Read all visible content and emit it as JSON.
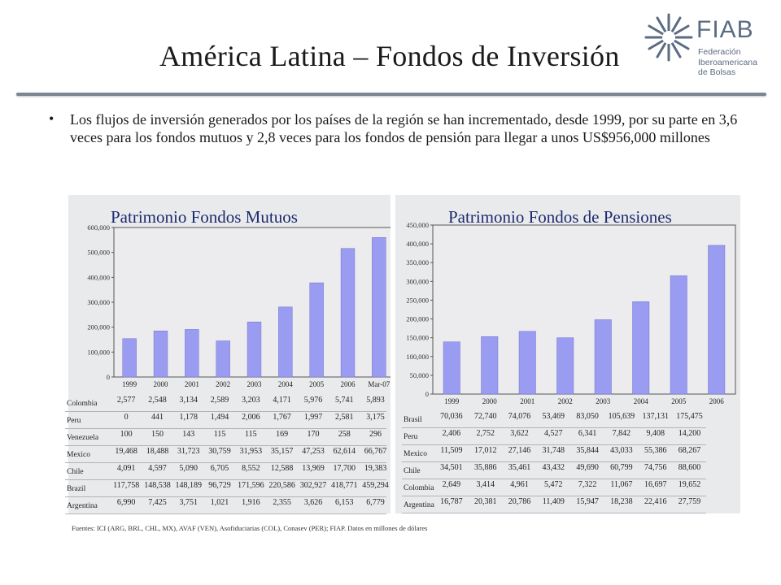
{
  "slide": {
    "title": "América Latina – Fondos de Inversión",
    "bullet": "Los flujos de inversión generados por los países de la región se han incrementado, desde 1999, por su parte en 3,6 veces para los fondos mutuos y 2,8 veces para los fondos de pensión para llegar a unos US$956,000 millones",
    "footnote": "Fuentes: ICI (ARG, BRL, CHL, MX), AVAF (VEN), Asofiduciarias (COL), Conasev (PER); FIAP. Datos en millones de dólares"
  },
  "logo": {
    "name": "FIAB",
    "subtitle_lines": [
      "Federación",
      "Iberoamericana",
      "de Bolsas"
    ],
    "color": "#5a6b82"
  },
  "colors": {
    "bar": "#9a9cf2",
    "bar_edge": "#6f72c8",
    "plot_bg": "#ececee",
    "title": "#1d2a6e"
  },
  "chart_data": [
    {
      "type": "bar",
      "title": "Patrimonio Fondos Mutuos",
      "categories": [
        "1999",
        "2000",
        "2001",
        "2002",
        "2003",
        "2004",
        "2005",
        "2006",
        "Mar-07"
      ],
      "values": [
        154000,
        185000,
        191000,
        145000,
        221000,
        281000,
        378000,
        516000,
        560000
      ],
      "ylim": [
        0,
        600000
      ],
      "yticks": [
        "0",
        "100,000",
        "200,000",
        "300,000",
        "400,000",
        "500,000",
        "600,000"
      ],
      "grid": false,
      "table": {
        "rows": [
          {
            "label": "Colombia",
            "values": [
              "2,577",
              "2,548",
              "3,134",
              "2,589",
              "3,203",
              "4,171",
              "5,976",
              "5,741",
              "5,893"
            ]
          },
          {
            "label": "Peru",
            "values": [
              "0",
              "441",
              "1,178",
              "1,494",
              "2,006",
              "1,767",
              "1,997",
              "2,581",
              "3,175"
            ]
          },
          {
            "label": "Venezuela",
            "values": [
              "100",
              "150",
              "143",
              "115",
              "115",
              "169",
              "170",
              "258",
              "296"
            ]
          },
          {
            "label": "Mexico",
            "values": [
              "19,468",
              "18,488",
              "31,723",
              "30,759",
              "31,953",
              "35,157",
              "47,253",
              "62,614",
              "66,767"
            ]
          },
          {
            "label": "Chile",
            "values": [
              "4,091",
              "4,597",
              "5,090",
              "6,705",
              "8,552",
              "12,588",
              "13,969",
              "17,700",
              "19,383"
            ]
          },
          {
            "label": "Brazil",
            "values": [
              "117,758",
              "148,538",
              "148,189",
              "96,729",
              "171,596",
              "220,586",
              "302,927",
              "418,771",
              "459,294"
            ]
          },
          {
            "label": "Argentina",
            "values": [
              "6,990",
              "7,425",
              "3,751",
              "1,021",
              "1,916",
              "2,355",
              "3,626",
              "6,153",
              "6,779"
            ]
          }
        ]
      }
    },
    {
      "type": "bar",
      "title": "Patrimonio Fondos de Pensiones",
      "categories": [
        "1999",
        "2000",
        "2001",
        "2002",
        "2003",
        "2004",
        "2005",
        "2006"
      ],
      "values": [
        139000,
        153000,
        167000,
        150000,
        198000,
        246000,
        315000,
        396000
      ],
      "ylim": [
        0,
        450000
      ],
      "yticks": [
        "0",
        "50,000",
        "100,000",
        "150,000",
        "200,000",
        "250,000",
        "300,000",
        "350,000",
        "400,000",
        "450,000"
      ],
      "grid": false,
      "table": {
        "rows": [
          {
            "label": "Brasil",
            "values": [
              "70,036",
              "72,740",
              "74,076",
              "53,469",
              "83,050",
              "105,639",
              "137,131",
              "175,475"
            ]
          },
          {
            "label": "Peru",
            "values": [
              "2,406",
              "2,752",
              "3,622",
              "4,527",
              "6,341",
              "7,842",
              "9,408",
              "14,200"
            ]
          },
          {
            "label": "Mexico",
            "values": [
              "11,509",
              "17,012",
              "27,146",
              "31,748",
              "35,844",
              "43,033",
              "55,386",
              "68,267"
            ]
          },
          {
            "label": "Chile",
            "values": [
              "34,501",
              "35,886",
              "35,461",
              "43,432",
              "49,690",
              "60,799",
              "74,756",
              "88,600"
            ]
          },
          {
            "label": "Colombia",
            "values": [
              "2,649",
              "3,414",
              "4,961",
              "5,472",
              "7,322",
              "11,067",
              "16,697",
              "19,652"
            ]
          },
          {
            "label": "Argentina",
            "values": [
              "16,787",
              "20,381",
              "20,786",
              "11,409",
              "15,947",
              "18,238",
              "22,416",
              "27,759"
            ]
          }
        ]
      }
    }
  ]
}
